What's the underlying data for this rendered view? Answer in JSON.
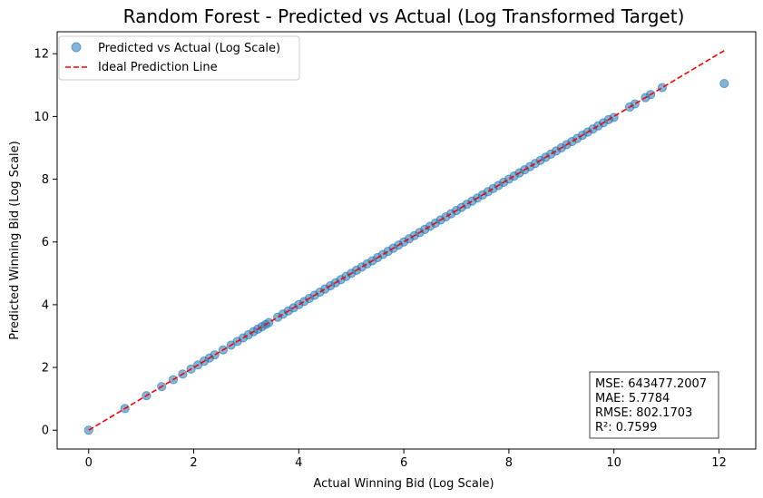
{
  "chart_data": {
    "type": "scatter",
    "title": "Random Forest - Predicted vs Actual (Log Transformed Target)",
    "xlabel": "Actual Winning Bid (Log Scale)",
    "ylabel": "Predicted Winning Bid (Log Scale)",
    "xlim": [
      -0.6,
      12.7
    ],
    "ylim": [
      -0.6,
      12.7
    ],
    "xticks": [
      0,
      2,
      4,
      6,
      8,
      10,
      12
    ],
    "yticks": [
      0,
      2,
      4,
      6,
      8,
      10,
      12
    ],
    "grid": false,
    "legend_position": "top-left",
    "series": [
      {
        "name": "Predicted vs Actual (Log Scale)",
        "kind": "scatter",
        "color": "#1f77b4",
        "points": [
          [
            0,
            0
          ],
          [
            0.69,
            0.69
          ],
          [
            1.1,
            1.1
          ],
          [
            1.39,
            1.39
          ],
          [
            1.61,
            1.61
          ],
          [
            1.79,
            1.79
          ],
          [
            1.95,
            1.95
          ],
          [
            2.08,
            2.08
          ],
          [
            2.2,
            2.2
          ],
          [
            2.3,
            2.3
          ],
          [
            2.4,
            2.4
          ],
          [
            2.56,
            2.56
          ],
          [
            2.71,
            2.71
          ],
          [
            2.83,
            2.83
          ],
          [
            2.94,
            2.94
          ],
          [
            3.04,
            3.04
          ],
          [
            3.14,
            3.14
          ],
          [
            3.22,
            3.22
          ],
          [
            3.3,
            3.3
          ],
          [
            3.37,
            3.37
          ],
          [
            3.43,
            3.43
          ],
          [
            3.6,
            3.6
          ],
          [
            3.7,
            3.7
          ],
          [
            3.8,
            3.8
          ],
          [
            3.9,
            3.9
          ],
          [
            4.0,
            4.0
          ],
          [
            4.1,
            4.1
          ],
          [
            4.2,
            4.2
          ],
          [
            4.3,
            4.3
          ],
          [
            4.4,
            4.4
          ],
          [
            4.5,
            4.5
          ],
          [
            4.6,
            4.6
          ],
          [
            4.7,
            4.7
          ],
          [
            4.8,
            4.8
          ],
          [
            4.9,
            4.9
          ],
          [
            5.0,
            5.0
          ],
          [
            5.1,
            5.1
          ],
          [
            5.2,
            5.2
          ],
          [
            5.3,
            5.3
          ],
          [
            5.4,
            5.4
          ],
          [
            5.5,
            5.5
          ],
          [
            5.6,
            5.6
          ],
          [
            5.7,
            5.7
          ],
          [
            5.8,
            5.8
          ],
          [
            5.9,
            5.9
          ],
          [
            6.0,
            6.0
          ],
          [
            6.1,
            6.1
          ],
          [
            6.2,
            6.2
          ],
          [
            6.3,
            6.3
          ],
          [
            6.4,
            6.4
          ],
          [
            6.5,
            6.5
          ],
          [
            6.6,
            6.6
          ],
          [
            6.7,
            6.7
          ],
          [
            6.8,
            6.8
          ],
          [
            6.9,
            6.9
          ],
          [
            7.0,
            7.0
          ],
          [
            7.1,
            7.1
          ],
          [
            7.2,
            7.2
          ],
          [
            7.3,
            7.3
          ],
          [
            7.4,
            7.4
          ],
          [
            7.5,
            7.5
          ],
          [
            7.6,
            7.6
          ],
          [
            7.7,
            7.7
          ],
          [
            7.8,
            7.8
          ],
          [
            7.9,
            7.9
          ],
          [
            8.0,
            8.0
          ],
          [
            8.1,
            8.1
          ],
          [
            8.2,
            8.2
          ],
          [
            8.3,
            8.3
          ],
          [
            8.4,
            8.4
          ],
          [
            8.5,
            8.5
          ],
          [
            8.6,
            8.6
          ],
          [
            8.7,
            8.7
          ],
          [
            8.8,
            8.8
          ],
          [
            8.9,
            8.9
          ],
          [
            9.0,
            9.0
          ],
          [
            9.1,
            9.1
          ],
          [
            9.2,
            9.2
          ],
          [
            9.3,
            9.3
          ],
          [
            9.4,
            9.4
          ],
          [
            9.5,
            9.5
          ],
          [
            9.6,
            9.6
          ],
          [
            9.7,
            9.7
          ],
          [
            9.8,
            9.8
          ],
          [
            9.9,
            9.9
          ],
          [
            10.0,
            9.97
          ],
          [
            10.3,
            10.3
          ],
          [
            10.4,
            10.4
          ],
          [
            10.6,
            10.6
          ],
          [
            10.7,
            10.7
          ],
          [
            10.92,
            10.92
          ],
          [
            12.1,
            11.05
          ]
        ]
      },
      {
        "name": "Ideal Prediction Line",
        "kind": "line",
        "style": "dashed",
        "color": "#ff0000",
        "x": [
          0,
          12.1
        ],
        "y": [
          0,
          12.1
        ]
      }
    ],
    "annotation": {
      "lines": [
        "MSE: 643477.2007",
        "MAE: 5.7784",
        "RMSE: 802.1703",
        "R²: 0.7599"
      ],
      "position": "bottom-right"
    }
  }
}
